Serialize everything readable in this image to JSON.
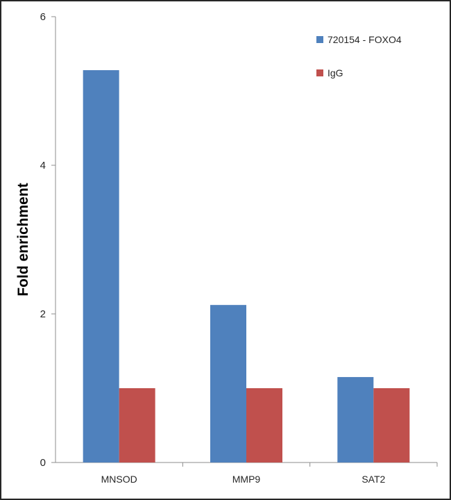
{
  "chart_data": {
    "type": "bar",
    "title": "",
    "xlabel": "",
    "ylabel": "Fold enrichment",
    "categories": [
      "MNSOD",
      "MMP9",
      "SAT2"
    ],
    "series": [
      {
        "name": "720154 - FOXO4",
        "values": [
          5.28,
          2.12,
          1.15
        ],
        "color": "#4f81bd"
      },
      {
        "name": "IgG",
        "values": [
          1.0,
          1.0,
          1.0
        ],
        "color": "#c0504d"
      }
    ],
    "ylim": [
      0,
      6
    ],
    "yticks": [
      "0",
      "2",
      "4",
      "6"
    ],
    "grid": false,
    "legend_position": "top-right"
  }
}
